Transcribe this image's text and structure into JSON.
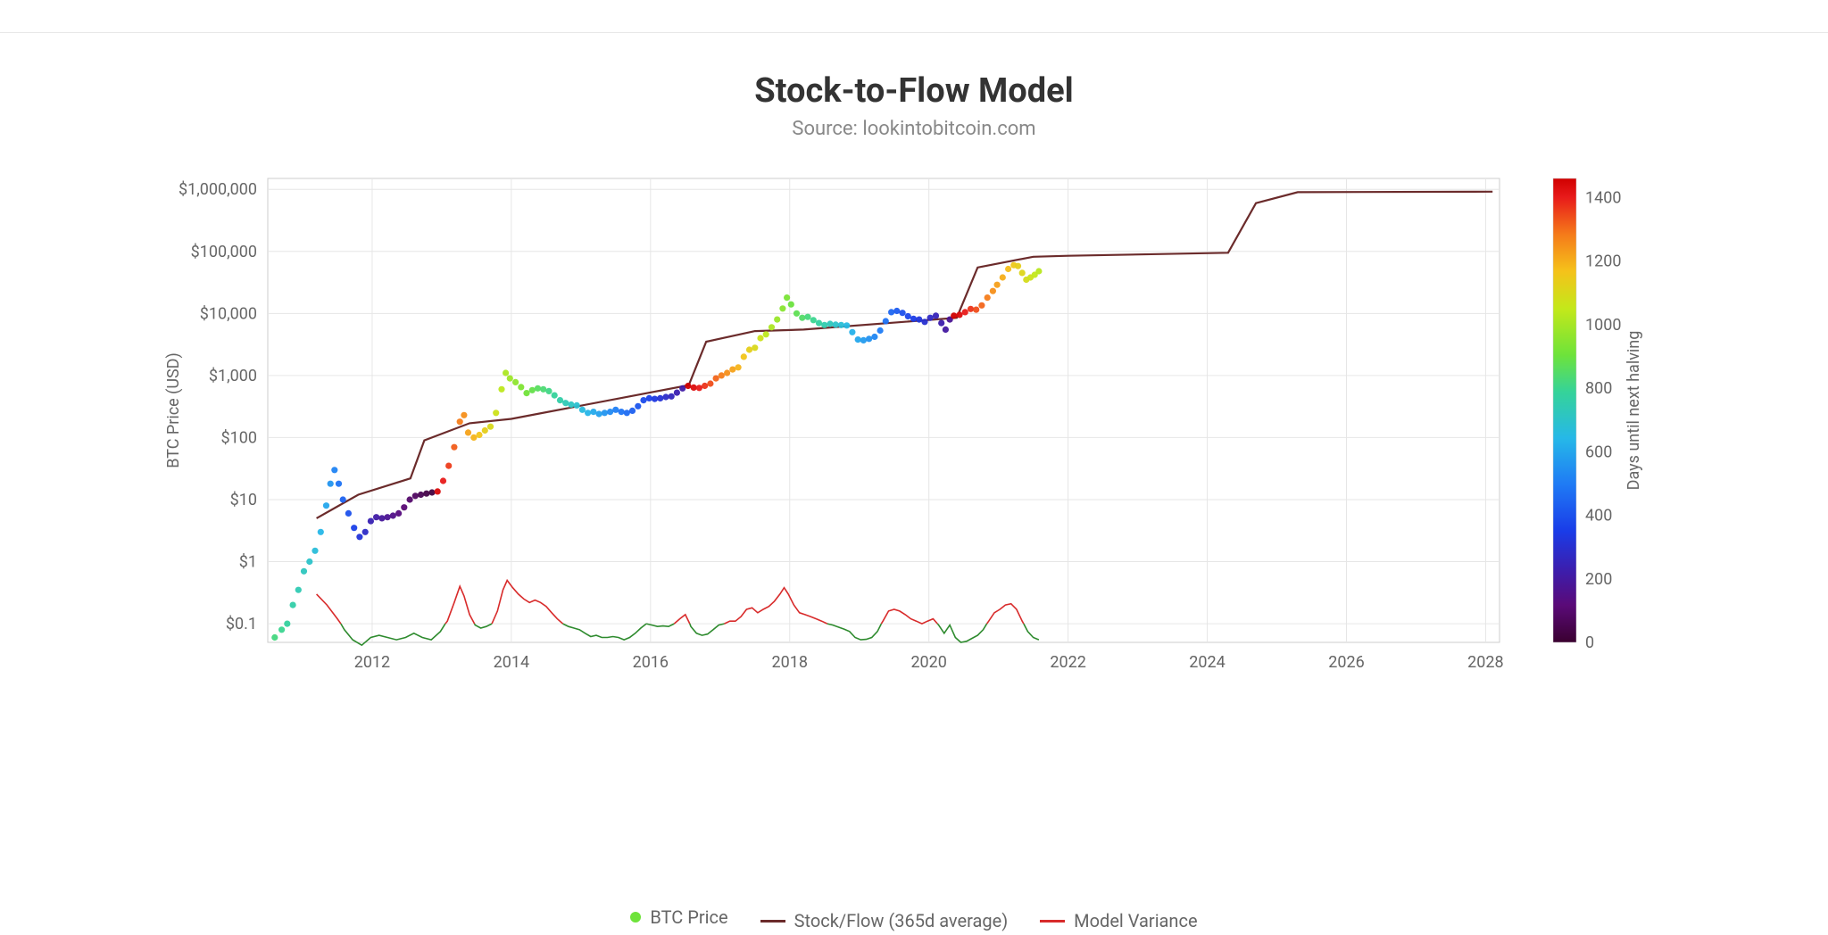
{
  "title": "Stock-to-Flow Model",
  "subtitle": "Source: lookintobitcoin.com",
  "chart": {
    "type": "line+scatter",
    "background_color": "#ffffff",
    "plot_background": "#ffffff",
    "grid_color": "#e6e6e6",
    "axis_color": "#cccccc",
    "y_axis": {
      "label": "BTC Price (USD)",
      "scale": "log",
      "min": 0.05,
      "max": 1500000,
      "ticks": [
        0.1,
        1,
        10,
        100,
        1000,
        10000,
        100000,
        1000000
      ],
      "tick_labels": [
        "$0.1",
        "$1",
        "$10",
        "$100",
        "$1,000",
        "$10,000",
        "$100,000",
        "$1,000,000"
      ],
      "label_fontsize": 18,
      "tick_fontsize": 18,
      "tick_color": "#666666"
    },
    "x_axis": {
      "scale": "linear",
      "min": 2010.5,
      "max": 2028.2,
      "ticks": [
        2012,
        2014,
        2016,
        2018,
        2020,
        2022,
        2024,
        2026,
        2028
      ],
      "tick_labels": [
        "2012",
        "2014",
        "2016",
        "2018",
        "2020",
        "2022",
        "2024",
        "2026",
        "2028"
      ],
      "tick_fontsize": 18,
      "tick_color": "#666666"
    },
    "colorbar": {
      "label": "Days until next halving",
      "min": 0,
      "max": 1460,
      "ticks": [
        0,
        200,
        400,
        600,
        800,
        1000,
        1200,
        1400
      ],
      "stops": [
        {
          "t": 0.0,
          "c": "#3a0030"
        },
        {
          "t": 0.08,
          "c": "#5a0a78"
        },
        {
          "t": 0.16,
          "c": "#3a1fb0"
        },
        {
          "t": 0.24,
          "c": "#1a3ce8"
        },
        {
          "t": 0.34,
          "c": "#1f7af5"
        },
        {
          "t": 0.44,
          "c": "#26b8e8"
        },
        {
          "t": 0.54,
          "c": "#35d399"
        },
        {
          "t": 0.62,
          "c": "#6ee33a"
        },
        {
          "t": 0.72,
          "c": "#c4e81a"
        },
        {
          "t": 0.8,
          "c": "#f5c21a"
        },
        {
          "t": 0.88,
          "c": "#f57a1a"
        },
        {
          "t": 0.96,
          "c": "#e81a1a"
        },
        {
          "t": 1.0,
          "c": "#d00000"
        }
      ],
      "label_fontsize": 18,
      "tick_fontsize": 18
    },
    "stock_flow_line": {
      "color": "#6b2b2b",
      "width": 2.2,
      "points": [
        [
          2011.2,
          5
        ],
        [
          2011.8,
          12
        ],
        [
          2012.55,
          22
        ],
        [
          2012.75,
          90
        ],
        [
          2013.4,
          170
        ],
        [
          2014.0,
          200
        ],
        [
          2016.55,
          700
        ],
        [
          2016.8,
          3500
        ],
        [
          2017.5,
          5200
        ],
        [
          2018.2,
          5500
        ],
        [
          2020.4,
          8500
        ],
        [
          2020.7,
          55000
        ],
        [
          2021.5,
          82000
        ],
        [
          2022.0,
          85000
        ],
        [
          2024.3,
          95000
        ],
        [
          2024.7,
          600000
        ],
        [
          2025.3,
          900000
        ],
        [
          2028.1,
          920000
        ]
      ]
    },
    "btc_price_points": [
      [
        2010.6,
        0.06,
        820
      ],
      [
        2010.7,
        0.08,
        800
      ],
      [
        2010.78,
        0.1,
        780
      ],
      [
        2010.86,
        0.2,
        760
      ],
      [
        2010.94,
        0.35,
        740
      ],
      [
        2011.02,
        0.7,
        720
      ],
      [
        2011.1,
        1.0,
        700
      ],
      [
        2011.18,
        1.5,
        670
      ],
      [
        2011.26,
        3.0,
        640
      ],
      [
        2011.34,
        8.0,
        600
      ],
      [
        2011.4,
        18.0,
        560
      ],
      [
        2011.46,
        30.0,
        520
      ],
      [
        2011.52,
        18.0,
        480
      ],
      [
        2011.58,
        10.0,
        440
      ],
      [
        2011.66,
        6.0,
        400
      ],
      [
        2011.74,
        3.5,
        360
      ],
      [
        2011.82,
        2.5,
        320
      ],
      [
        2011.9,
        3.0,
        280
      ],
      [
        2011.98,
        4.5,
        240
      ],
      [
        2012.06,
        5.2,
        210
      ],
      [
        2012.14,
        5.0,
        190
      ],
      [
        2012.22,
        5.2,
        170
      ],
      [
        2012.3,
        5.5,
        150
      ],
      [
        2012.38,
        6.0,
        130
      ],
      [
        2012.46,
        7.5,
        110
      ],
      [
        2012.54,
        10.0,
        95
      ],
      [
        2012.62,
        11.5,
        80
      ],
      [
        2012.7,
        12.0,
        60
      ],
      [
        2012.78,
        12.5,
        40
      ],
      [
        2012.86,
        13.0,
        25
      ],
      [
        2012.94,
        13.5,
        1440
      ],
      [
        2013.02,
        20.0,
        1400
      ],
      [
        2013.1,
        35.0,
        1360
      ],
      [
        2013.18,
        70.0,
        1320
      ],
      [
        2013.26,
        180.0,
        1280
      ],
      [
        2013.32,
        230.0,
        1250
      ],
      [
        2013.38,
        120.0,
        1220
      ],
      [
        2013.46,
        100.0,
        1190
      ],
      [
        2013.54,
        110.0,
        1160
      ],
      [
        2013.62,
        130.0,
        1130
      ],
      [
        2013.7,
        150.0,
        1100
      ],
      [
        2013.78,
        250.0,
        1070
      ],
      [
        2013.86,
        600.0,
        1040
      ],
      [
        2013.92,
        1100.0,
        1010
      ],
      [
        2013.98,
        900.0,
        985
      ],
      [
        2014.06,
        780.0,
        960
      ],
      [
        2014.14,
        650.0,
        935
      ],
      [
        2014.22,
        520.0,
        910
      ],
      [
        2014.3,
        580.0,
        885
      ],
      [
        2014.38,
        620.0,
        860
      ],
      [
        2014.46,
        600.0,
        835
      ],
      [
        2014.54,
        560.0,
        810
      ],
      [
        2014.62,
        480.0,
        785
      ],
      [
        2014.7,
        400.0,
        760
      ],
      [
        2014.78,
        360.0,
        735
      ],
      [
        2014.86,
        340.0,
        710
      ],
      [
        2014.94,
        330.0,
        685
      ],
      [
        2015.02,
        280.0,
        660
      ],
      [
        2015.1,
        250.0,
        635
      ],
      [
        2015.18,
        260.0,
        610
      ],
      [
        2015.26,
        240.0,
        585
      ],
      [
        2015.34,
        250.0,
        560
      ],
      [
        2015.42,
        260.0,
        535
      ],
      [
        2015.5,
        280.0,
        510
      ],
      [
        2015.58,
        260.0,
        485
      ],
      [
        2015.66,
        250.0,
        460
      ],
      [
        2015.74,
        270.0,
        435
      ],
      [
        2015.82,
        320.0,
        410
      ],
      [
        2015.9,
        400.0,
        385
      ],
      [
        2015.98,
        430.0,
        360
      ],
      [
        2016.06,
        420.0,
        335
      ],
      [
        2016.14,
        430.0,
        310
      ],
      [
        2016.22,
        450.0,
        285
      ],
      [
        2016.3,
        460.0,
        260
      ],
      [
        2016.38,
        530.0,
        235
      ],
      [
        2016.46,
        620.0,
        210
      ],
      [
        2016.54,
        680.0,
        1460
      ],
      [
        2016.62,
        640.0,
        1430
      ],
      [
        2016.7,
        630.0,
        1400
      ],
      [
        2016.78,
        680.0,
        1370
      ],
      [
        2016.86,
        740.0,
        1340
      ],
      [
        2016.94,
        900.0,
        1310
      ],
      [
        2017.02,
        1000.0,
        1280
      ],
      [
        2017.1,
        1100.0,
        1250
      ],
      [
        2017.18,
        1250.0,
        1220
      ],
      [
        2017.26,
        1350.0,
        1190
      ],
      [
        2017.34,
        2000.0,
        1160
      ],
      [
        2017.42,
        2600.0,
        1130
      ],
      [
        2017.5,
        2800.0,
        1100
      ],
      [
        2017.58,
        4000.0,
        1070
      ],
      [
        2017.66,
        4600.0,
        1040
      ],
      [
        2017.74,
        6000.0,
        1010
      ],
      [
        2017.82,
        8000.0,
        980
      ],
      [
        2017.9,
        12000.0,
        950
      ],
      [
        2017.96,
        18000.0,
        925
      ],
      [
        2018.02,
        14000.0,
        900
      ],
      [
        2018.1,
        10000.0,
        875
      ],
      [
        2018.18,
        8500.0,
        850
      ],
      [
        2018.26,
        8800.0,
        825
      ],
      [
        2018.34,
        7800.0,
        800
      ],
      [
        2018.42,
        7000.0,
        775
      ],
      [
        2018.5,
        6500.0,
        750
      ],
      [
        2018.58,
        6800.0,
        725
      ],
      [
        2018.66,
        6600.0,
        700
      ],
      [
        2018.74,
        6500.0,
        675
      ],
      [
        2018.82,
        6400.0,
        650
      ],
      [
        2018.9,
        5000.0,
        625
      ],
      [
        2018.98,
        3800.0,
        600
      ],
      [
        2019.06,
        3700.0,
        575
      ],
      [
        2019.14,
        3900.0,
        550
      ],
      [
        2019.22,
        4200.0,
        525
      ],
      [
        2019.3,
        5300.0,
        500
      ],
      [
        2019.38,
        7500.0,
        475
      ],
      [
        2019.46,
        10500.0,
        450
      ],
      [
        2019.54,
        11000.0,
        425
      ],
      [
        2019.62,
        10200.0,
        400
      ],
      [
        2019.7,
        9000.0,
        375
      ],
      [
        2019.78,
        8200.0,
        350
      ],
      [
        2019.86,
        8000.0,
        325
      ],
      [
        2019.94,
        7300.0,
        300
      ],
      [
        2020.02,
        8500.0,
        275
      ],
      [
        2020.1,
        9200.0,
        250
      ],
      [
        2020.18,
        7000.0,
        225
      ],
      [
        2020.24,
        5500.0,
        200
      ],
      [
        2020.3,
        8000.0,
        175
      ],
      [
        2020.36,
        9200.0,
        1460
      ],
      [
        2020.44,
        9500.0,
        1430
      ],
      [
        2020.52,
        10500.0,
        1400
      ],
      [
        2020.6,
        11800.0,
        1370
      ],
      [
        2020.68,
        11500.0,
        1340
      ],
      [
        2020.76,
        13500.0,
        1310
      ],
      [
        2020.84,
        18000.0,
        1280
      ],
      [
        2020.92,
        23000.0,
        1250
      ],
      [
        2020.98,
        29000.0,
        1225
      ],
      [
        2021.06,
        38000.0,
        1200
      ],
      [
        2021.14,
        52000.0,
        1175
      ],
      [
        2021.22,
        60000.0,
        1150
      ],
      [
        2021.28,
        58000.0,
        1130
      ],
      [
        2021.34,
        45000.0,
        1110
      ],
      [
        2021.4,
        35000.0,
        1090
      ],
      [
        2021.46,
        38000.0,
        1070
      ],
      [
        2021.52,
        42000.0,
        1050
      ],
      [
        2021.58,
        48000.0,
        1030
      ]
    ],
    "model_variance": {
      "above_color": "#d82b2b",
      "below_color": "#2e8b2e",
      "width": 1.6,
      "baseline": 0.1,
      "points": [
        [
          2011.2,
          0.3
        ],
        [
          2011.35,
          0.2
        ],
        [
          2011.5,
          0.12
        ],
        [
          2011.6,
          0.08
        ],
        [
          2011.72,
          0.055
        ],
        [
          2011.85,
          0.045
        ],
        [
          2011.98,
          0.06
        ],
        [
          2012.1,
          0.065
        ],
        [
          2012.22,
          0.06
        ],
        [
          2012.35,
          0.055
        ],
        [
          2012.48,
          0.06
        ],
        [
          2012.6,
          0.07
        ],
        [
          2012.72,
          0.06
        ],
        [
          2012.85,
          0.055
        ],
        [
          2012.98,
          0.075
        ],
        [
          2013.08,
          0.11
        ],
        [
          2013.18,
          0.22
        ],
        [
          2013.26,
          0.4
        ],
        [
          2013.32,
          0.28
        ],
        [
          2013.4,
          0.14
        ],
        [
          2013.48,
          0.095
        ],
        [
          2013.56,
          0.085
        ],
        [
          2013.64,
          0.09
        ],
        [
          2013.72,
          0.1
        ],
        [
          2013.8,
          0.16
        ],
        [
          2013.88,
          0.35
        ],
        [
          2013.94,
          0.5
        ],
        [
          2014.02,
          0.38
        ],
        [
          2014.1,
          0.3
        ],
        [
          2014.18,
          0.25
        ],
        [
          2014.26,
          0.22
        ],
        [
          2014.34,
          0.24
        ],
        [
          2014.42,
          0.22
        ],
        [
          2014.5,
          0.19
        ],
        [
          2014.58,
          0.15
        ],
        [
          2014.66,
          0.12
        ],
        [
          2014.74,
          0.1
        ],
        [
          2014.82,
          0.09
        ],
        [
          2014.9,
          0.085
        ],
        [
          2014.98,
          0.08
        ],
        [
          2015.06,
          0.07
        ],
        [
          2015.14,
          0.062
        ],
        [
          2015.22,
          0.065
        ],
        [
          2015.3,
          0.06
        ],
        [
          2015.38,
          0.06
        ],
        [
          2015.46,
          0.062
        ],
        [
          2015.54,
          0.06
        ],
        [
          2015.62,
          0.055
        ],
        [
          2015.7,
          0.06
        ],
        [
          2015.78,
          0.07
        ],
        [
          2015.86,
          0.085
        ],
        [
          2015.94,
          0.1
        ],
        [
          2016.02,
          0.095
        ],
        [
          2016.1,
          0.09
        ],
        [
          2016.18,
          0.092
        ],
        [
          2016.26,
          0.09
        ],
        [
          2016.34,
          0.1
        ],
        [
          2016.42,
          0.12
        ],
        [
          2016.5,
          0.14
        ],
        [
          2016.58,
          0.09
        ],
        [
          2016.66,
          0.07
        ],
        [
          2016.74,
          0.065
        ],
        [
          2016.82,
          0.068
        ],
        [
          2016.9,
          0.08
        ],
        [
          2016.98,
          0.095
        ],
        [
          2017.06,
          0.1
        ],
        [
          2017.14,
          0.11
        ],
        [
          2017.22,
          0.11
        ],
        [
          2017.3,
          0.13
        ],
        [
          2017.38,
          0.17
        ],
        [
          2017.46,
          0.18
        ],
        [
          2017.54,
          0.15
        ],
        [
          2017.62,
          0.17
        ],
        [
          2017.7,
          0.19
        ],
        [
          2017.78,
          0.23
        ],
        [
          2017.86,
          0.3
        ],
        [
          2017.92,
          0.38
        ],
        [
          2017.98,
          0.3
        ],
        [
          2018.06,
          0.2
        ],
        [
          2018.14,
          0.15
        ],
        [
          2018.22,
          0.14
        ],
        [
          2018.3,
          0.13
        ],
        [
          2018.38,
          0.12
        ],
        [
          2018.46,
          0.11
        ],
        [
          2018.54,
          0.1
        ],
        [
          2018.62,
          0.095
        ],
        [
          2018.7,
          0.088
        ],
        [
          2018.78,
          0.082
        ],
        [
          2018.86,
          0.075
        ],
        [
          2018.94,
          0.06
        ],
        [
          2019.02,
          0.055
        ],
        [
          2019.1,
          0.056
        ],
        [
          2019.18,
          0.06
        ],
        [
          2019.26,
          0.075
        ],
        [
          2019.34,
          0.11
        ],
        [
          2019.42,
          0.16
        ],
        [
          2019.5,
          0.17
        ],
        [
          2019.58,
          0.16
        ],
        [
          2019.66,
          0.14
        ],
        [
          2019.74,
          0.12
        ],
        [
          2019.82,
          0.11
        ],
        [
          2019.9,
          0.1
        ],
        [
          2019.98,
          0.11
        ],
        [
          2020.06,
          0.12
        ],
        [
          2020.14,
          0.095
        ],
        [
          2020.22,
          0.07
        ],
        [
          2020.3,
          0.095
        ],
        [
          2020.38,
          0.06
        ],
        [
          2020.46,
          0.05
        ],
        [
          2020.54,
          0.052
        ],
        [
          2020.62,
          0.058
        ],
        [
          2020.7,
          0.065
        ],
        [
          2020.78,
          0.08
        ],
        [
          2020.86,
          0.11
        ],
        [
          2020.94,
          0.15
        ],
        [
          2021.02,
          0.17
        ],
        [
          2021.1,
          0.2
        ],
        [
          2021.18,
          0.21
        ],
        [
          2021.26,
          0.17
        ],
        [
          2021.34,
          0.11
        ],
        [
          2021.42,
          0.075
        ],
        [
          2021.5,
          0.06
        ],
        [
          2021.58,
          0.055
        ]
      ]
    }
  },
  "legend": {
    "items": [
      {
        "kind": "dot",
        "color": "#6ee33a",
        "label": "BTC Price"
      },
      {
        "kind": "line",
        "color": "#6b2b2b",
        "label": "Stock/Flow (365d average)"
      },
      {
        "kind": "line",
        "color": "#d82b2b",
        "label": "Model Variance"
      }
    ]
  }
}
